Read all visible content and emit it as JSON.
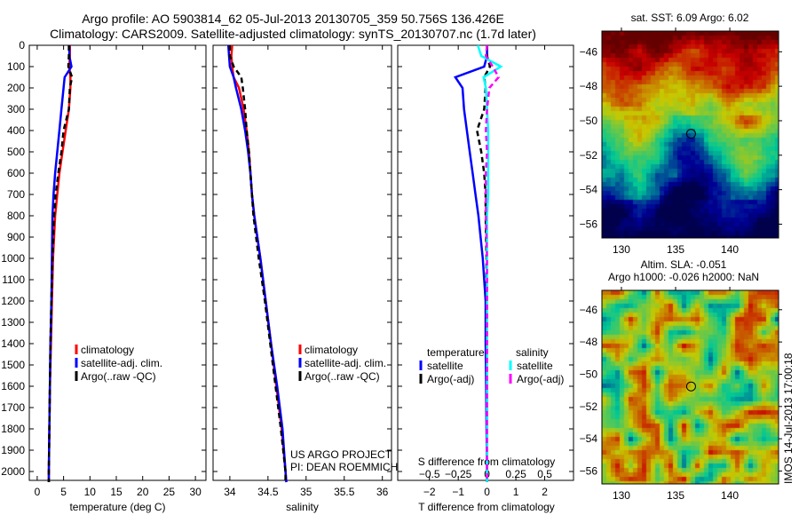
{
  "header": {
    "title_line1": "Argo profile: AO 5903814_62 05-Jul-2013 20130705_359 50.756S 136.426E",
    "title_line2": "Climatology: CARS2009. Satellite-adjusted climatology: synTS_20130707.nc (1.7d later)"
  },
  "colors": {
    "climatology": "#ff0000",
    "satellite": "#0000ff",
    "argo": "#000000",
    "sal_satellite": "#00ffff",
    "sal_argo": "#ff00ff"
  },
  "chart_data": [
    {
      "type": "line",
      "name": "temperature",
      "xlabel": "temperature (deg C)",
      "ylabel": "",
      "xlim": [
        -1.5,
        32
      ],
      "ylim": [
        2050,
        0
      ],
      "xticks": [
        0,
        5,
        10,
        15,
        20,
        25,
        30
      ],
      "yticks": [
        0,
        100,
        200,
        300,
        400,
        500,
        600,
        700,
        800,
        900,
        1000,
        1100,
        1200,
        1300,
        1400,
        1500,
        1600,
        1700,
        1800,
        1900,
        2000
      ],
      "depth": [
        0,
        50,
        100,
        150,
        200,
        300,
        400,
        500,
        600,
        700,
        800,
        1000,
        1200,
        1400,
        1600,
        1800,
        2000,
        2050
      ],
      "series": [
        {
          "name": "climatology",
          "values": [
            6.2,
            6.2,
            6.1,
            6.3,
            6.3,
            6.0,
            5.4,
            4.8,
            4.2,
            3.8,
            3.4,
            3.0,
            2.8,
            2.6,
            2.4,
            2.3,
            2.2,
            2.2
          ]
        },
        {
          "name": "satellite-adj. clim.",
          "values": [
            6.1,
            6.1,
            6.5,
            5.2,
            5.0,
            4.6,
            4.2,
            3.8,
            3.4,
            3.1,
            2.9,
            2.8,
            2.7,
            2.5,
            2.4,
            2.3,
            2.2,
            2.2
          ]
        },
        {
          "name": "Argo(..raw -QC)",
          "values": [
            6.0,
            6.0,
            5.9,
            6.6,
            6.2,
            6.0,
            5.0,
            4.6,
            4.0,
            3.5,
            3.2,
            2.9,
            2.7,
            2.5,
            2.4,
            2.3,
            2.2,
            2.2
          ]
        }
      ]
    },
    {
      "type": "line",
      "name": "salinity",
      "xlabel": "salinity",
      "xlim": [
        33.78,
        36.12
      ],
      "ylim": [
        2050,
        0
      ],
      "xticks": [
        34,
        34.5,
        35,
        35.5,
        36
      ],
      "depth": [
        0,
        50,
        100,
        150,
        200,
        300,
        400,
        500,
        600,
        700,
        800,
        1000,
        1200,
        1400,
        1600,
        1800,
        2000,
        2050
      ],
      "series": [
        {
          "name": "climatology",
          "values": [
            34.03,
            34.02,
            34.03,
            34.05,
            34.12,
            34.18,
            34.22,
            34.25,
            34.27,
            34.29,
            34.32,
            34.4,
            34.47,
            34.54,
            34.61,
            34.68,
            34.73,
            34.74
          ]
        },
        {
          "name": "satellite-adj. clim.",
          "values": [
            33.98,
            33.99,
            34.0,
            34.05,
            34.08,
            34.15,
            34.2,
            34.24,
            34.27,
            34.29,
            34.32,
            34.4,
            34.47,
            34.54,
            34.62,
            34.69,
            34.73,
            34.74
          ]
        },
        {
          "name": "Argo(..raw -QC)",
          "values": [
            34.0,
            34.0,
            34.05,
            34.15,
            34.17,
            34.2,
            34.22,
            34.25,
            34.27,
            34.29,
            34.31,
            34.38,
            34.46,
            34.53,
            34.6,
            34.67,
            34.73,
            34.73
          ]
        }
      ],
      "annotation1": "US ARGO PROJECT",
      "annotation2": "PI: DEAN ROEMMICH"
    },
    {
      "type": "line",
      "name": "difference",
      "xlabel": "T difference from climatology",
      "x2label": "S difference from climatology",
      "xlim": [
        -3.1,
        3.0
      ],
      "ylim": [
        2050,
        0
      ],
      "xticks": [
        -2,
        -1,
        0,
        1,
        2
      ],
      "x2ticks": [
        -0.5,
        -0.25,
        0,
        0.25,
        0.5
      ],
      "depth": [
        0,
        50,
        100,
        150,
        200,
        300,
        400,
        500,
        600,
        700,
        800,
        1000,
        1200,
        1400,
        1600,
        1800,
        2000,
        2050
      ],
      "legend_temp_title": "temperature",
      "legend_sal_title": "salinity",
      "series": [
        {
          "name": "satellite",
          "group": "temperature",
          "axis": "T",
          "values": [
            0.0,
            0.0,
            -0.1,
            -1.1,
            -0.85,
            -0.8,
            -0.7,
            -0.6,
            -0.5,
            -0.4,
            -0.3,
            -0.15,
            -0.05,
            -0.05,
            -0.03,
            -0.02,
            0,
            0
          ]
        },
        {
          "name": "Argo(-adj)",
          "group": "temperature",
          "axis": "T",
          "values": [
            0,
            0,
            0.1,
            -0.1,
            -0.05,
            -0.1,
            -0.35,
            -0.2,
            -0.1,
            -0.05,
            -0.05,
            -0.02,
            -0.02,
            -0.02,
            0,
            0,
            0,
            0
          ]
        },
        {
          "name": "satellite",
          "group": "salinity",
          "axis": "S",
          "values": [
            -0.08,
            -0.05,
            0.12,
            -0.03,
            -0.01,
            0.0,
            0.01,
            0.01,
            0.01,
            0.01,
            0.0,
            0.0,
            0.0,
            0,
            0,
            0,
            0,
            0
          ]
        },
        {
          "name": "Argo(-adj)",
          "group": "salinity",
          "axis": "S",
          "values": [
            0,
            -0.01,
            0.05,
            0.1,
            0.02,
            0.0,
            -0.01,
            0,
            -0.01,
            -0.01,
            -0.01,
            0,
            0,
            0,
            0,
            0,
            0,
            0
          ]
        }
      ]
    },
    {
      "type": "heatmap",
      "name": "sst-map",
      "title": "sat. SST: 6.09 Argo: 6.02",
      "xlim": [
        128.2,
        144.5
      ],
      "ylim": [
        -56.8,
        -44.8
      ],
      "xticks": [
        130,
        135,
        140
      ],
      "yticks": [
        -46,
        -48,
        -50,
        -52,
        -54,
        -56
      ],
      "marker": {
        "lon": 136.426,
        "lat": -50.756
      }
    },
    {
      "type": "heatmap",
      "name": "sla-map",
      "title_line1": "Altim. SLA: -0.051",
      "title_line2": "Argo h1000: -0.026 h2000: NaN",
      "xlim": [
        128.2,
        144.5
      ],
      "ylim": [
        -56.8,
        -44.8
      ],
      "xticks": [
        130,
        135,
        140
      ],
      "yticks": [
        -46,
        -48,
        -50,
        -52,
        -54,
        -56
      ],
      "marker": {
        "lon": 136.426,
        "lat": -50.756
      }
    }
  ],
  "footer": {
    "stamp": "IMOS 14-Jul-2013 17:00:18"
  }
}
